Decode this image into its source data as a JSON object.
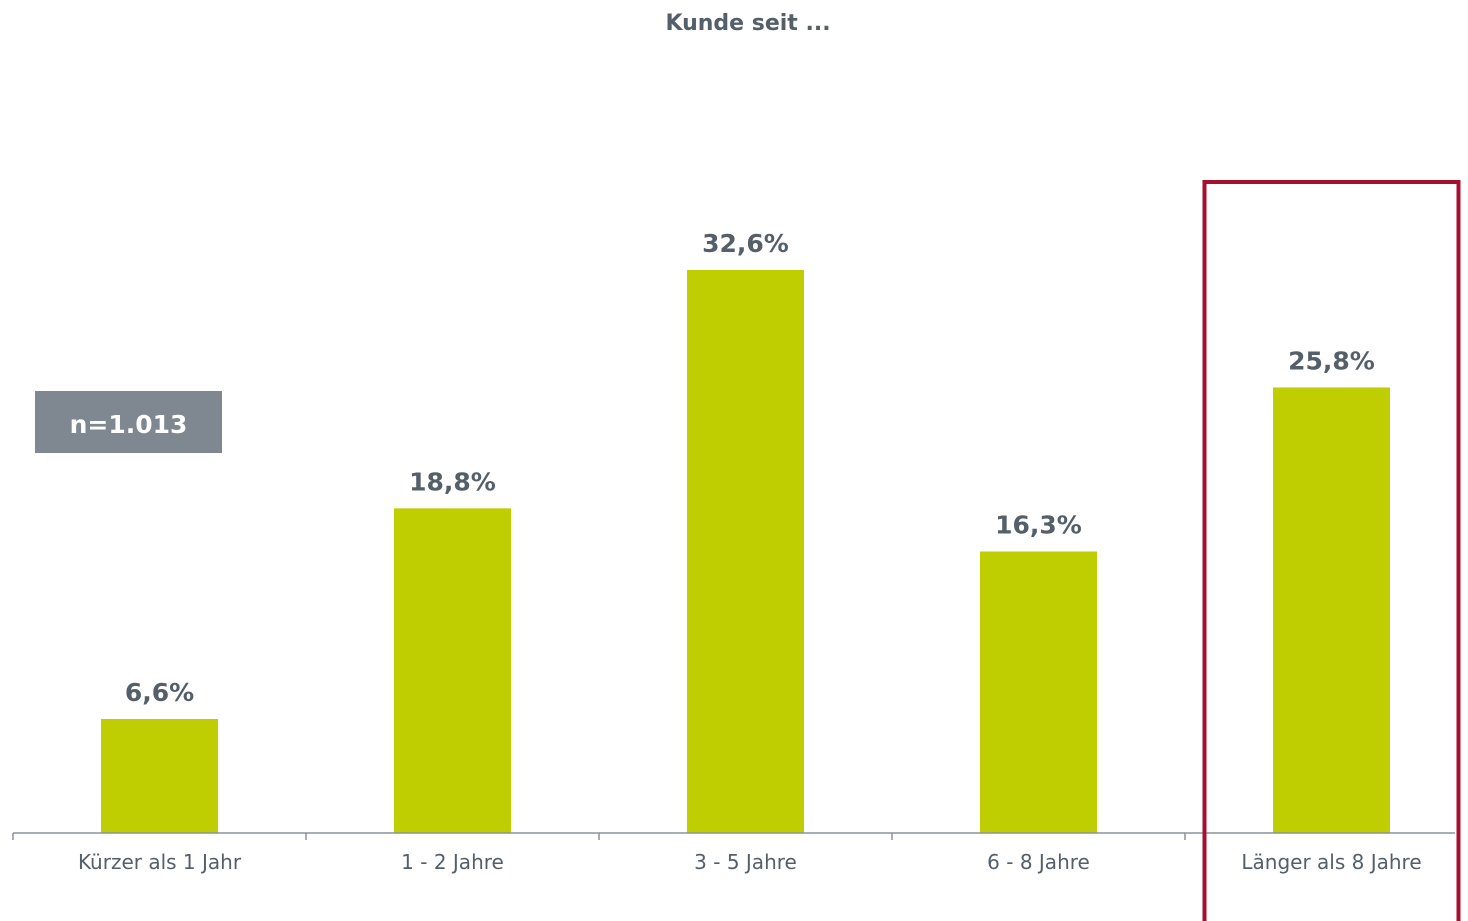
{
  "chart_data": {
    "type": "bar",
    "title": "Kunde seit ...",
    "xlabel": "",
    "ylabel": "",
    "categories": [
      "Kürzer als 1 Jahr",
      "1 - 2 Jahre",
      "3 - 5 Jahre",
      "6 - 8 Jahre",
      "Länger als 8 Jahre"
    ],
    "values": [
      6.6,
      18.8,
      32.6,
      16.3,
      25.8
    ],
    "value_labels": [
      "6,6%",
      "18,8%",
      "32,6%",
      "16,3%",
      "25,8%"
    ],
    "unit": "%",
    "ylim": [
      0,
      33
    ],
    "grid": false,
    "legend": "none",
    "highlight_category": "Länger als 8 Jahre",
    "sample_size_badge": "n=1.013"
  },
  "colors": {
    "bar": "#bfce00",
    "text": "#545f6a",
    "highlight_box": "#a6102f",
    "badge_bg": "#7f8891",
    "axis": "#8a939b"
  }
}
